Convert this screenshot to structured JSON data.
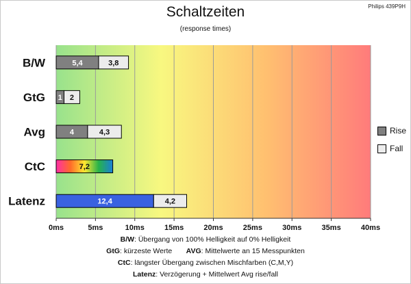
{
  "model": "Philips 439P9H",
  "title": "Schaltzeiten",
  "subtitle": "(response times)",
  "legend": {
    "rise": "Rise",
    "fall": "Fall",
    "rise_color": "#808080",
    "fall_color": "#ececec"
  },
  "chart_data": {
    "type": "bar",
    "orientation": "horizontal",
    "stacked": true,
    "categories": [
      "B/W",
      "GtG",
      "Avg",
      "CtC",
      "Latenz"
    ],
    "series": [
      {
        "name": "Rise",
        "values": [
          5.4,
          1,
          4,
          null,
          null
        ]
      },
      {
        "name": "Fall",
        "values": [
          3.8,
          2,
          4.3,
          null,
          4.2
        ]
      }
    ],
    "special_bars": [
      {
        "category": "CtC",
        "value": 7.2,
        "label": "7,2",
        "fill": "rainbow"
      },
      {
        "category": "Latenz",
        "value": 12.4,
        "label": "12,4",
        "fill": "#3a62e0"
      }
    ],
    "data_labels": {
      "B/W": [
        "5,4",
        "3,8"
      ],
      "GtG": [
        "1",
        "2"
      ],
      "Avg": [
        "4",
        "4,3"
      ],
      "CtC": [
        "7,2"
      ],
      "Latenz": [
        "12,4",
        "4,2"
      ]
    },
    "xlim": [
      0,
      40
    ],
    "xticks": [
      0,
      5,
      10,
      15,
      20,
      25,
      30,
      35,
      40
    ],
    "xtick_labels": [
      "0ms",
      "5ms",
      "10ms",
      "15ms",
      "20ms",
      "25ms",
      "30ms",
      "35ms",
      "40ms"
    ],
    "grid": true,
    "background_gradient": [
      "#98e28c",
      "#f8f880",
      "#ffc070",
      "#ff7b7b"
    ],
    "legend_position": "right"
  },
  "notes": [
    {
      "key": "B/W",
      "text": ":  Übergang von 100% Helligkeit auf 0% Helligkeit"
    },
    {
      "key": "GtG",
      "text": ": kürzeste  Werte",
      "key2": "AVG",
      "text2": ": Mittelwerte  an 15 Messpunkten"
    },
    {
      "key": "CtC",
      "text": ": längster Übergang  zwischen Mischfarben (C,M,Y)"
    },
    {
      "key": "Latenz",
      "text": ": Verzögerung  + Mittelwert Avg rise/fall"
    }
  ]
}
